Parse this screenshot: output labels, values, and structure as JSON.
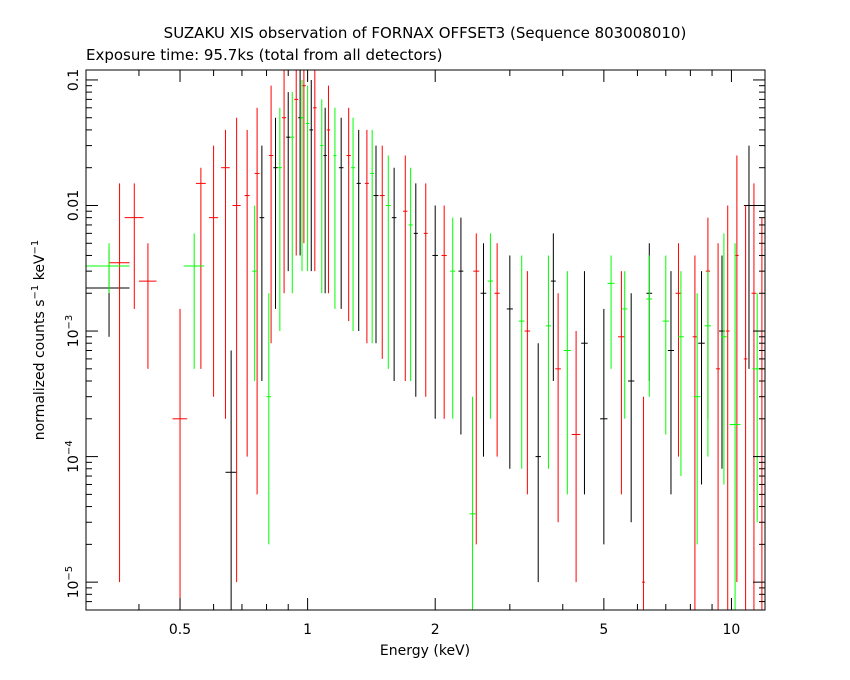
{
  "chart_data": {
    "type": "scatter",
    "title": "SUZAKU XIS observation of FORNAX OFFSET3 (Sequence 803008010)",
    "subtitle": "Exposure time: 95.7ks (total from all detectors)",
    "xlabel": "Energy (keV)",
    "ylabel": "normalized counts s",
    "ylabel_sup1": "−1",
    "ylabel_mid": " keV",
    "ylabel_sup2": "−1",
    "x_scale": "log",
    "y_scale": "log",
    "xlim": [
      0.3,
      12
    ],
    "ylim": [
      6e-06,
      0.12
    ],
    "x_ticks": [
      {
        "value": 0.5,
        "label": "0.5"
      },
      {
        "value": 1,
        "label": "1"
      },
      {
        "value": 2,
        "label": "2"
      },
      {
        "value": 5,
        "label": "5"
      },
      {
        "value": 10,
        "label": "10"
      }
    ],
    "y_ticks": [
      {
        "value": 0.1,
        "base": "0.1",
        "exp": ""
      },
      {
        "value": 0.01,
        "base": "0.01",
        "exp": ""
      },
      {
        "value": 0.001,
        "base": "10",
        "exp": "−3"
      },
      {
        "value": 0.0001,
        "base": "10",
        "exp": "−4"
      },
      {
        "value": 1e-05,
        "base": "10",
        "exp": "−5"
      }
    ],
    "grid": false,
    "legend": "none",
    "series": [
      {
        "color": "#000000",
        "points": [
          {
            "x": 0.34,
            "y": 0.0022,
            "xerr": 0.04,
            "ylo": 0.0009,
            "yhi": 0.0045
          },
          {
            "x": 0.66,
            "y": 7.5e-05,
            "xerr": 0.02,
            "ylo": 6e-06,
            "yhi": 0.0007
          },
          {
            "x": 0.78,
            "y": 0.008,
            "xerr": 0.01,
            "ylo": 0.0004,
            "yhi": 0.03
          },
          {
            "x": 0.84,
            "y": 0.02,
            "xerr": 0.01,
            "ylo": 0.0015,
            "yhi": 0.05
          },
          {
            "x": 0.9,
            "y": 0.035,
            "xerr": 0.01,
            "ylo": 0.003,
            "yhi": 0.08
          },
          {
            "x": 0.96,
            "y": 0.05,
            "xerr": 0.01,
            "ylo": 0.004,
            "yhi": 0.12
          },
          {
            "x": 1.02,
            "y": 0.04,
            "xerr": 0.01,
            "ylo": 0.003,
            "yhi": 0.1
          },
          {
            "x": 1.1,
            "y": 0.025,
            "xerr": 0.01,
            "ylo": 0.002,
            "yhi": 0.06
          },
          {
            "x": 1.2,
            "y": 0.02,
            "xerr": 0.015,
            "ylo": 0.0015,
            "yhi": 0.05
          },
          {
            "x": 1.32,
            "y": 0.015,
            "xerr": 0.015,
            "ylo": 0.001,
            "yhi": 0.04
          },
          {
            "x": 1.45,
            "y": 0.012,
            "xerr": 0.02,
            "ylo": 0.0008,
            "yhi": 0.03
          },
          {
            "x": 1.6,
            "y": 0.008,
            "xerr": 0.02,
            "ylo": 0.0004,
            "yhi": 0.02
          },
          {
            "x": 1.8,
            "y": 0.006,
            "xerr": 0.02,
            "ylo": 0.0003,
            "yhi": 0.015
          },
          {
            "x": 2.0,
            "y": 0.004,
            "xerr": 0.03,
            "ylo": 0.0002,
            "yhi": 0.01
          },
          {
            "x": 2.3,
            "y": 0.003,
            "xerr": 0.03,
            "ylo": 0.00015,
            "yhi": 0.008
          },
          {
            "x": 2.6,
            "y": 0.002,
            "xerr": 0.04,
            "ylo": 0.0001,
            "yhi": 0.005
          },
          {
            "x": 3.0,
            "y": 0.0015,
            "xerr": 0.05,
            "ylo": 8e-05,
            "yhi": 0.004
          },
          {
            "x": 3.5,
            "y": 0.0001,
            "xerr": 0.05,
            "ylo": 1e-05,
            "yhi": 0.0008
          },
          {
            "x": 3.8,
            "y": 0.0025,
            "xerr": 0.05,
            "ylo": 0.0004,
            "yhi": 0.006
          },
          {
            "x": 4.5,
            "y": 0.0008,
            "xerr": 0.08,
            "ylo": 5e-05,
            "yhi": 0.003
          },
          {
            "x": 5.0,
            "y": 0.0002,
            "xerr": 0.1,
            "ylo": 2e-05,
            "yhi": 0.0015
          },
          {
            "x": 5.8,
            "y": 0.0004,
            "xerr": 0.1,
            "ylo": 3e-05,
            "yhi": 0.002
          },
          {
            "x": 6.4,
            "y": 0.002,
            "xerr": 0.1,
            "ylo": 0.0004,
            "yhi": 0.005
          },
          {
            "x": 7.2,
            "y": 0.0007,
            "xerr": 0.12,
            "ylo": 5e-05,
            "yhi": 0.003
          },
          {
            "x": 8.5,
            "y": 0.0008,
            "xerr": 0.15,
            "ylo": 6e-05,
            "yhi": 0.003
          },
          {
            "x": 9.5,
            "y": 0.001,
            "xerr": 0.15,
            "ylo": 8e-05,
            "yhi": 0.004
          },
          {
            "x": 11.0,
            "y": 0.01,
            "xerr": 0.3,
            "ylo": 0.0005,
            "yhi": 0.03
          }
        ]
      },
      {
        "color": "#ff0000",
        "points": [
          {
            "x": 0.36,
            "y": 0.0035,
            "xerr": 0.02,
            "ylo": 1e-05,
            "yhi": 0.015
          },
          {
            "x": 0.39,
            "y": 0.008,
            "xerr": 0.02,
            "ylo": 0.0015,
            "yhi": 0.015
          },
          {
            "x": 0.42,
            "y": 0.0025,
            "xerr": 0.02,
            "ylo": 0.0005,
            "yhi": 0.005
          },
          {
            "x": 0.5,
            "y": 0.0002,
            "xerr": 0.02,
            "ylo": 6e-06,
            "yhi": 0.0015
          },
          {
            "x": 0.56,
            "y": 0.015,
            "xerr": 0.015,
            "ylo": 0.0005,
            "yhi": 0.02
          },
          {
            "x": 0.6,
            "y": 0.008,
            "xerr": 0.015,
            "ylo": 0.0003,
            "yhi": 0.03
          },
          {
            "x": 0.64,
            "y": 0.02,
            "xerr": 0.015,
            "ylo": 0.0002,
            "yhi": 0.04
          },
          {
            "x": 0.68,
            "y": 0.01,
            "xerr": 0.015,
            "ylo": 1e-05,
            "yhi": 0.05
          },
          {
            "x": 0.72,
            "y": 0.012,
            "xerr": 0.01,
            "ylo": 0.0001,
            "yhi": 0.04
          },
          {
            "x": 0.76,
            "y": 0.018,
            "xerr": 0.01,
            "ylo": 5e-05,
            "yhi": 0.06
          },
          {
            "x": 0.82,
            "y": 0.025,
            "xerr": 0.01,
            "ylo": 0.0008,
            "yhi": 0.09
          },
          {
            "x": 0.88,
            "y": 0.05,
            "xerr": 0.01,
            "ylo": 0.002,
            "yhi": 0.12
          },
          {
            "x": 0.94,
            "y": 0.07,
            "xerr": 0.01,
            "ylo": 0.004,
            "yhi": 0.12
          },
          {
            "x": 0.98,
            "y": 0.09,
            "xerr": 0.01,
            "ylo": 0.005,
            "yhi": 0.12
          },
          {
            "x": 1.04,
            "y": 0.06,
            "xerr": 0.01,
            "ylo": 0.003,
            "yhi": 0.12
          },
          {
            "x": 1.12,
            "y": 0.04,
            "xerr": 0.01,
            "ylo": 0.002,
            "yhi": 0.09
          },
          {
            "x": 1.25,
            "y": 0.025,
            "xerr": 0.015,
            "ylo": 0.0012,
            "yhi": 0.06
          },
          {
            "x": 1.38,
            "y": 0.015,
            "xerr": 0.015,
            "ylo": 0.0008,
            "yhi": 0.04
          },
          {
            "x": 1.5,
            "y": 0.012,
            "xerr": 0.02,
            "ylo": 0.0006,
            "yhi": 0.03
          },
          {
            "x": 1.7,
            "y": 0.009,
            "xerr": 0.02,
            "ylo": 0.0004,
            "yhi": 0.025
          },
          {
            "x": 1.9,
            "y": 0.006,
            "xerr": 0.02,
            "ylo": 0.0003,
            "yhi": 0.015
          },
          {
            "x": 2.1,
            "y": 0.004,
            "xerr": 0.03,
            "ylo": 0.0002,
            "yhi": 0.01
          },
          {
            "x": 2.5,
            "y": 0.003,
            "xerr": 0.04,
            "ylo": 2e-05,
            "yhi": 0.006
          },
          {
            "x": 2.8,
            "y": 0.002,
            "xerr": 0.04,
            "ylo": 0.0001,
            "yhi": 0.005
          },
          {
            "x": 3.3,
            "y": 0.001,
            "xerr": 0.05,
            "ylo": 5e-05,
            "yhi": 0.003
          },
          {
            "x": 3.9,
            "y": 0.0005,
            "xerr": 0.06,
            "ylo": 3e-05,
            "yhi": 0.002
          },
          {
            "x": 4.3,
            "y": 0.00015,
            "xerr": 0.1,
            "ylo": 1e-05,
            "yhi": 0.001
          },
          {
            "x": 5.5,
            "y": 0.0009,
            "xerr": 0.1,
            "ylo": 5e-05,
            "yhi": 0.003
          },
          {
            "x": 6.2,
            "y": 1e-05,
            "xerr": 0.05,
            "ylo": 6e-06,
            "yhi": 0.0003
          },
          {
            "x": 7.5,
            "y": 0.002,
            "xerr": 0.12,
            "ylo": 0.0001,
            "yhi": 0.005
          },
          {
            "x": 8.2,
            "y": 0.0009,
            "xerr": 0.1,
            "ylo": 6e-06,
            "yhi": 0.004
          },
          {
            "x": 8.8,
            "y": 0.003,
            "xerr": 0.1,
            "ylo": 0.0002,
            "yhi": 0.008
          },
          {
            "x": 9.3,
            "y": 0.0005,
            "xerr": 0.1,
            "ylo": 6e-06,
            "yhi": 0.005
          },
          {
            "x": 9.8,
            "y": 0.001,
            "xerr": 0.1,
            "ylo": 6e-06,
            "yhi": 0.01
          },
          {
            "x": 10.3,
            "y": 0.004,
            "xerr": 0.1,
            "ylo": 1e-05,
            "yhi": 0.025
          },
          {
            "x": 10.8,
            "y": 0.0006,
            "xerr": 0.1,
            "ylo": 6e-06,
            "yhi": 0.01
          },
          {
            "x": 11.3,
            "y": 0.002,
            "xerr": 0.15,
            "ylo": 6e-06,
            "yhi": 0.015
          },
          {
            "x": 11.8,
            "y": 0.0005,
            "xerr": 0.15,
            "ylo": 6e-06,
            "yhi": 0.008
          }
        ]
      },
      {
        "color": "#00ff00",
        "points": [
          {
            "x": 0.34,
            "y": 0.0033,
            "xerr": 0.04,
            "ylo": 0.002,
            "yhi": 0.005
          },
          {
            "x": 0.54,
            "y": 0.0033,
            "xerr": 0.03,
            "ylo": 0.0005,
            "yhi": 0.006
          },
          {
            "x": 0.75,
            "y": 0.003,
            "xerr": 0.01,
            "ylo": 0.0004,
            "yhi": 0.01
          },
          {
            "x": 0.81,
            "y": 0.0003,
            "xerr": 0.01,
            "ylo": 2e-05,
            "yhi": 0.002
          },
          {
            "x": 0.86,
            "y": 0.02,
            "xerr": 0.01,
            "ylo": 0.001,
            "yhi": 0.06
          },
          {
            "x": 0.92,
            "y": 0.035,
            "xerr": 0.01,
            "ylo": 0.002,
            "yhi": 0.08
          },
          {
            "x": 0.97,
            "y": 0.05,
            "xerr": 0.01,
            "ylo": 0.003,
            "yhi": 0.1
          },
          {
            "x": 1.0,
            "y": 0.045,
            "xerr": 0.01,
            "ylo": 0.003,
            "yhi": 0.09
          },
          {
            "x": 1.08,
            "y": 0.03,
            "xerr": 0.01,
            "ylo": 0.002,
            "yhi": 0.07
          },
          {
            "x": 1.16,
            "y": 0.025,
            "xerr": 0.01,
            "ylo": 0.0015,
            "yhi": 0.06
          },
          {
            "x": 1.28,
            "y": 0.02,
            "xerr": 0.015,
            "ylo": 0.001,
            "yhi": 0.05
          },
          {
            "x": 1.42,
            "y": 0.018,
            "xerr": 0.015,
            "ylo": 0.0008,
            "yhi": 0.04
          },
          {
            "x": 1.55,
            "y": 0.01,
            "xerr": 0.02,
            "ylo": 0.0005,
            "yhi": 0.025
          },
          {
            "x": 1.75,
            "y": 0.007,
            "xerr": 0.02,
            "ylo": 0.0004,
            "yhi": 0.02
          },
          {
            "x": 2.2,
            "y": 0.003,
            "xerr": 0.03,
            "ylo": 0.0002,
            "yhi": 0.008
          },
          {
            "x": 2.45,
            "y": 3.5e-05,
            "xerr": 0.04,
            "ylo": 6e-06,
            "yhi": 0.0003
          },
          {
            "x": 2.7,
            "y": 0.0025,
            "xerr": 0.04,
            "ylo": 0.0002,
            "yhi": 0.006
          },
          {
            "x": 3.2,
            "y": 0.0012,
            "xerr": 0.05,
            "ylo": 8e-05,
            "yhi": 0.004
          },
          {
            "x": 3.7,
            "y": 0.0011,
            "xerr": 0.05,
            "ylo": 8e-05,
            "yhi": 0.004
          },
          {
            "x": 4.1,
            "y": 0.0007,
            "xerr": 0.08,
            "ylo": 5e-05,
            "yhi": 0.003
          },
          {
            "x": 5.2,
            "y": 0.0024,
            "xerr": 0.1,
            "ylo": 0.0005,
            "yhi": 0.004
          },
          {
            "x": 5.6,
            "y": 0.0015,
            "xerr": 0.08,
            "ylo": 0.0002,
            "yhi": 0.003
          },
          {
            "x": 6.4,
            "y": 0.0018,
            "xerr": 0.1,
            "ylo": 0.0003,
            "yhi": 0.004
          },
          {
            "x": 7.0,
            "y": 0.0012,
            "xerr": 0.12,
            "ylo": 0.00015,
            "yhi": 0.004
          },
          {
            "x": 7.6,
            "y": 0.0009,
            "xerr": 0.12,
            "ylo": 7e-05,
            "yhi": 0.003
          },
          {
            "x": 8.3,
            "y": 0.0003,
            "xerr": 0.15,
            "ylo": 2e-05,
            "yhi": 0.002
          },
          {
            "x": 8.8,
            "y": 0.0011,
            "xerr": 0.15,
            "ylo": 0.0001,
            "yhi": 0.003
          },
          {
            "x": 9.6,
            "y": 0.0009,
            "xerr": 0.15,
            "ylo": 6e-05,
            "yhi": 0.006
          },
          {
            "x": 10.2,
            "y": 0.00018,
            "xerr": 0.3,
            "ylo": 6e-06,
            "yhi": 0.005
          },
          {
            "x": 11.5,
            "y": 0.0005,
            "xerr": 0.3,
            "ylo": 3e-05,
            "yhi": 0.002
          }
        ]
      }
    ]
  }
}
